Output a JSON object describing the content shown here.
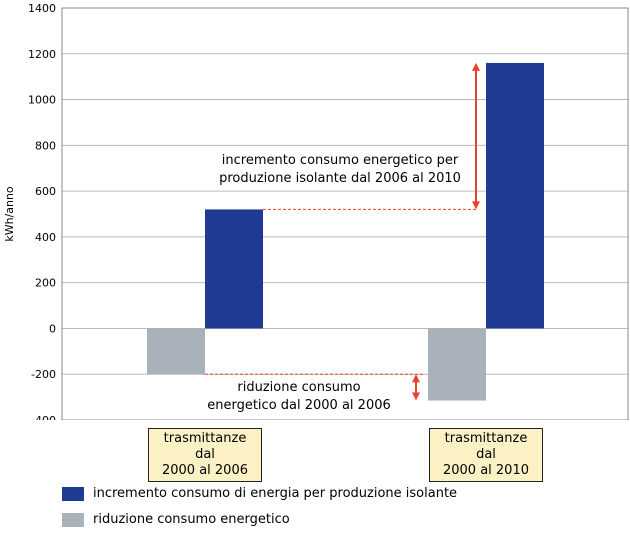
{
  "chart_data": {
    "type": "bar",
    "ylabel": "kWh/anno",
    "ylim": [
      -400,
      1400
    ],
    "yticks": [
      -400,
      -200,
      0,
      200,
      400,
      600,
      800,
      1000,
      1200,
      1400
    ],
    "grid": true,
    "categories": [
      {
        "line1": "trasmittanze dal",
        "line2": "2000 al 2006"
      },
      {
        "line1": "trasmittanze dal",
        "line2": "2000 al 2010"
      }
    ],
    "series": [
      {
        "name": "riduzione consumo energetico",
        "color": "#a9b2ba",
        "values": [
          -200,
          -315
        ]
      },
      {
        "name": "incremento consumo di energia per produzione isolante",
        "color": "#1f3a93",
        "values": [
          520,
          1160
        ]
      }
    ],
    "annotations": [
      {
        "line1": "incremento consumo energetico per",
        "line2": "produzione isolante dal 2006 al 2010"
      },
      {
        "line1": "riduzione consumo",
        "line2": "energetico dal 2000 al 2006"
      }
    ],
    "legend_position": "bottom"
  },
  "colors": {
    "arrow": "#e8412c",
    "grid": "#bbbbbb",
    "category_box": "#fbf1c4"
  }
}
